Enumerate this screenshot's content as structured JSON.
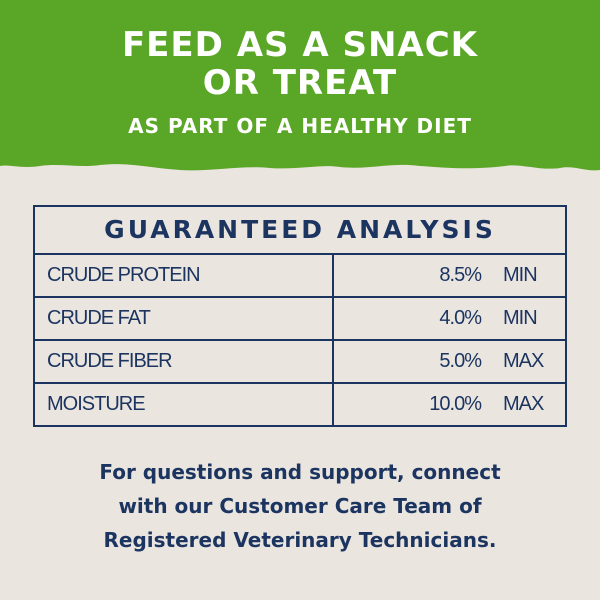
{
  "banner": {
    "line1": "FEED AS A SNACK",
    "line2": "OR TREAT",
    "line3": "AS PART OF A HEALTHY DIET",
    "color": "#5aa626"
  },
  "analysis": {
    "title": "GUARANTEED ANALYSIS",
    "rows": [
      {
        "name": "CRUDE PROTEIN",
        "value": "8.5%",
        "unit": "MIN"
      },
      {
        "name": "CRUDE FAT",
        "value": "4.0%",
        "unit": "MIN"
      },
      {
        "name": "CRUDE FIBER",
        "value": "5.0%",
        "unit": "MAX"
      },
      {
        "name": "MOISTURE",
        "value": "10.0%",
        "unit": "MAX"
      }
    ],
    "color": "#1c3560"
  },
  "footer": {
    "line1": "For questions and support, connect",
    "line2": "with our Customer Care Team of",
    "line3": "Registered Veterinary Technicians."
  }
}
